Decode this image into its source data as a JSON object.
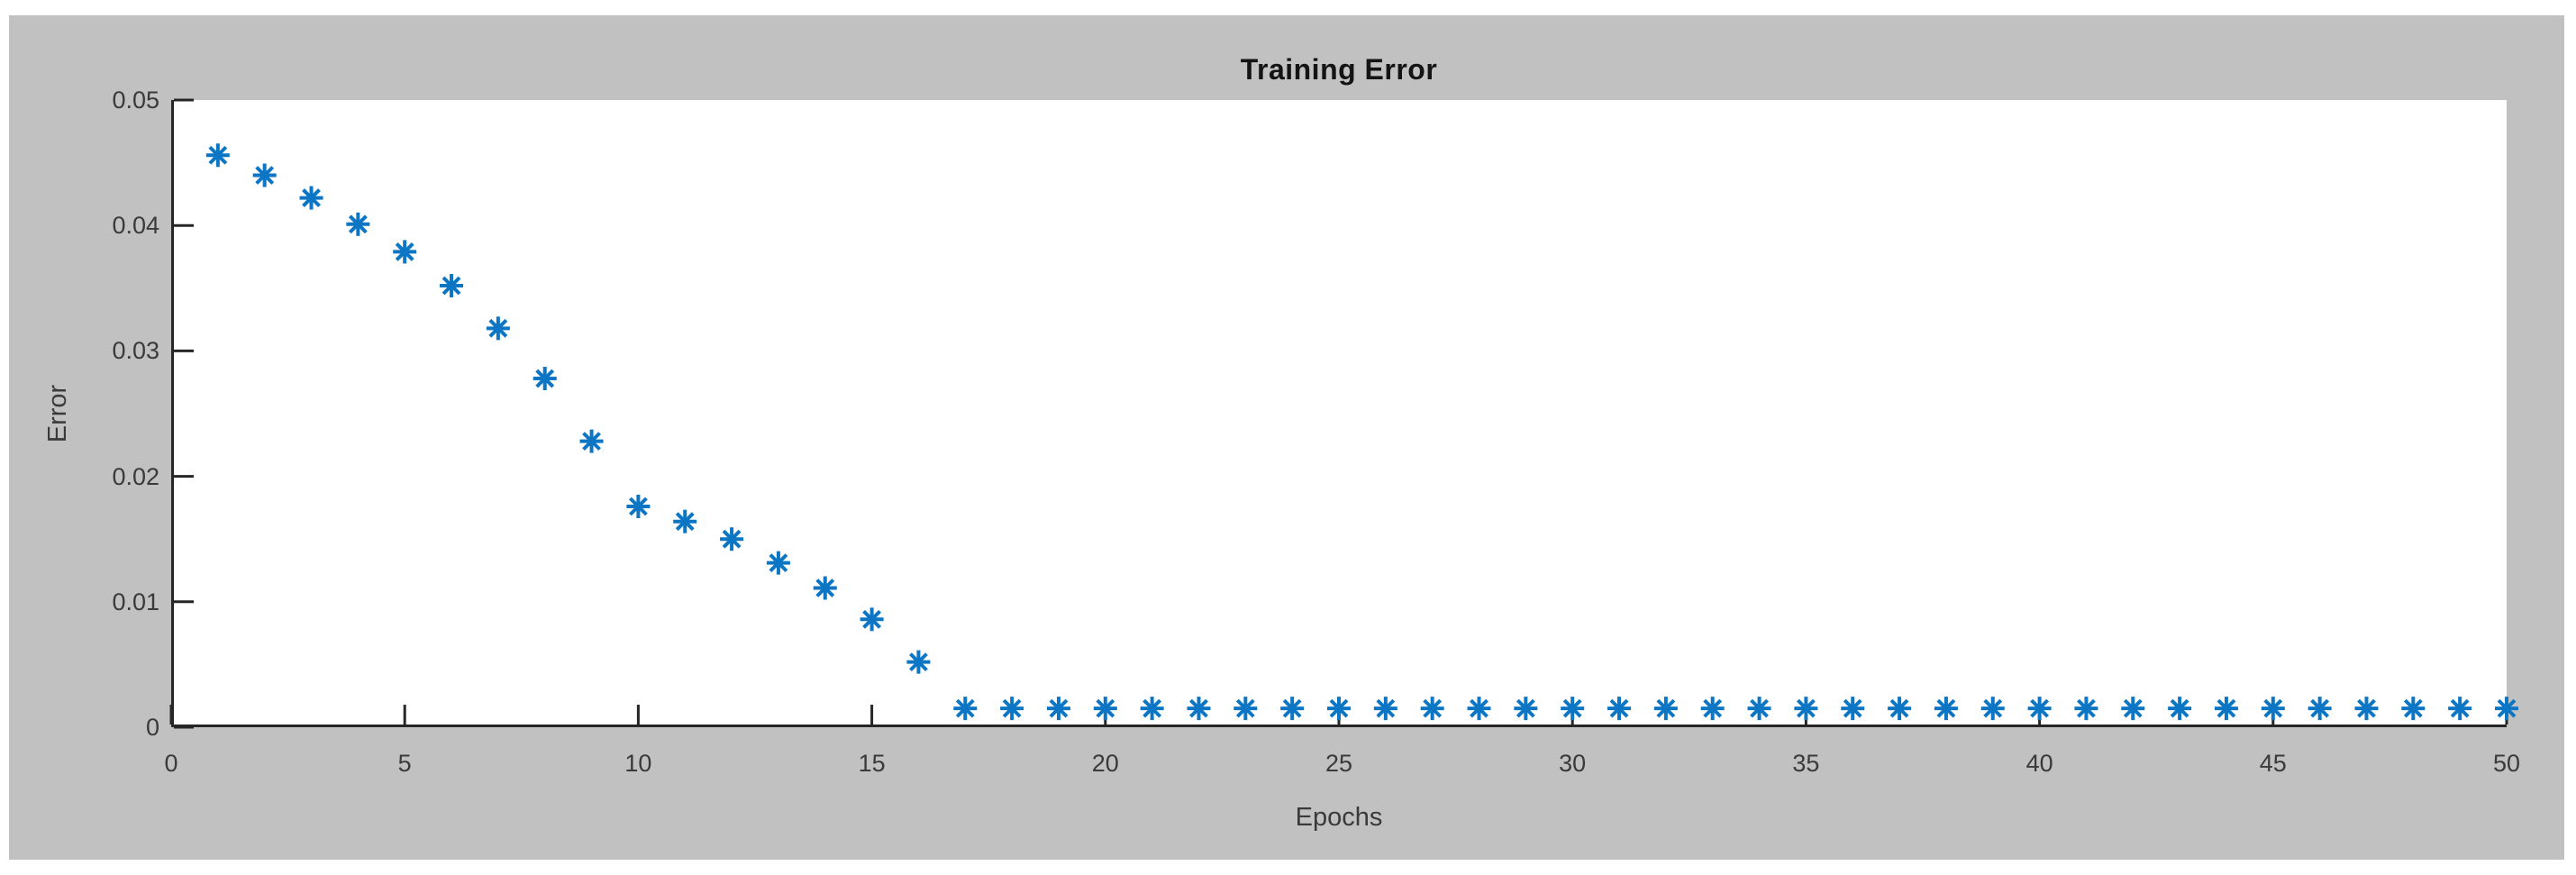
{
  "figure": {
    "background_color": "#c1c1c1",
    "page_background_color": "#ffffff",
    "plot_background_color": "#ffffff"
  },
  "chart_data": {
    "type": "scatter",
    "title": "Training Error",
    "xlabel": "Epochs",
    "ylabel": "Error",
    "marker": "asterisk",
    "marker_color": "#0C76C4",
    "axis_color": "#262626",
    "tick_label_color": "#3a3a3a",
    "grid": false,
    "legend": null,
    "xlim": [
      0,
      50
    ],
    "ylim": [
      0,
      0.05
    ],
    "xtick_values": [
      0,
      5,
      10,
      15,
      20,
      25,
      30,
      35,
      40,
      45,
      50
    ],
    "xtick_labels": [
      "0",
      "5",
      "10",
      "15",
      "20",
      "25",
      "30",
      "35",
      "40",
      "45",
      "50"
    ],
    "ytick_values": [
      0,
      0.01,
      0.02,
      0.03,
      0.04,
      0.05
    ],
    "ytick_labels": [
      "0",
      "0.01",
      "0.02",
      "0.03",
      "0.04",
      "0.05"
    ],
    "x": [
      1,
      2,
      3,
      4,
      5,
      6,
      7,
      8,
      9,
      10,
      11,
      12,
      13,
      14,
      15,
      16,
      17,
      18,
      19,
      20,
      21,
      22,
      23,
      24,
      25,
      26,
      27,
      28,
      29,
      30,
      31,
      32,
      33,
      34,
      35,
      36,
      37,
      38,
      39,
      40,
      41,
      42,
      43,
      44,
      45,
      46,
      47,
      48,
      49,
      50
    ],
    "values": [
      0.0456,
      0.044,
      0.0422,
      0.0401,
      0.0379,
      0.0352,
      0.0318,
      0.0278,
      0.0228,
      0.0176,
      0.0164,
      0.015,
      0.0131,
      0.0111,
      0.0086,
      0.0052,
      0.0015,
      0.0015,
      0.0015,
      0.0015,
      0.0015,
      0.0015,
      0.0015,
      0.0015,
      0.0015,
      0.0015,
      0.0015,
      0.0015,
      0.0015,
      0.0015,
      0.0015,
      0.0015,
      0.0015,
      0.0015,
      0.0015,
      0.0015,
      0.0015,
      0.0015,
      0.0015,
      0.0015,
      0.0015,
      0.0015,
      0.0015,
      0.0015,
      0.0015,
      0.0015,
      0.0015,
      0.0015,
      0.0015,
      0.0015
    ]
  }
}
